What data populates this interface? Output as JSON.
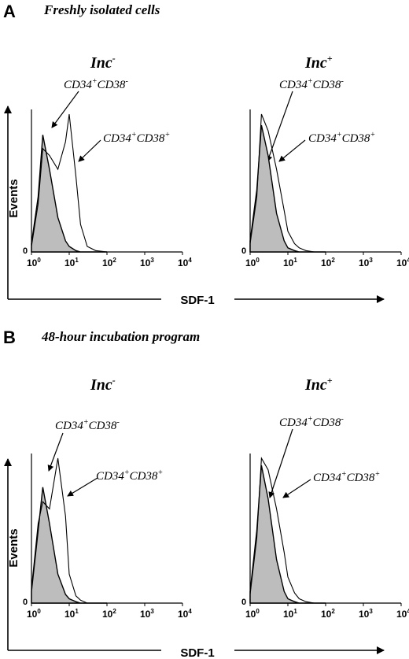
{
  "figure": {
    "panel_a": {
      "letter": "A",
      "title": "Freshly isolated cells"
    },
    "panel_b": {
      "letter": "B",
      "title": "48-hour incubation program"
    },
    "condition_base": "Inc",
    "condition_neg_sup": "-",
    "condition_pos_sup": "+",
    "pop_cd34": "CD34",
    "pop_cd38": "CD38",
    "sup_plus": "+",
    "sup_minus": "-",
    "events_label": "Events",
    "sdf_label": "SDF-1",
    "zero_tick": "0",
    "tick_base": "10",
    "tick_exponents": [
      "0",
      "1",
      "2",
      "3",
      "4"
    ]
  },
  "chart_data": [
    {
      "type": "area",
      "panel": "A",
      "condition": "Inc-",
      "xscale": "log",
      "xlim": [
        1,
        10000
      ],
      "x": [
        1,
        1.5,
        2,
        3,
        5,
        8,
        10,
        15,
        20,
        30,
        50,
        100
      ],
      "series": [
        {
          "name": "CD34+CD38-",
          "values": [
            6,
            40,
            85,
            60,
            25,
            8,
            4,
            1,
            0,
            0,
            0,
            0
          ]
        },
        {
          "name": "CD34+CD38+",
          "values": [
            4,
            35,
            75,
            70,
            60,
            80,
            100,
            55,
            20,
            4,
            1,
            0
          ]
        }
      ]
    },
    {
      "type": "area",
      "panel": "A",
      "condition": "Inc+",
      "xscale": "log",
      "xlim": [
        1,
        10000
      ],
      "x": [
        1,
        1.5,
        2,
        3,
        5,
        8,
        10,
        15,
        20,
        30,
        50,
        100
      ],
      "series": [
        {
          "name": "CD34+CD38-",
          "values": [
            8,
            45,
            92,
            70,
            28,
            8,
            3,
            1,
            0,
            0,
            0,
            0
          ]
        },
        {
          "name": "CD34+CD38+",
          "values": [
            6,
            40,
            100,
            88,
            60,
            30,
            15,
            6,
            3,
            1,
            0,
            0
          ]
        }
      ]
    },
    {
      "type": "area",
      "panel": "B",
      "condition": "Inc-",
      "xscale": "log",
      "xlim": [
        1,
        10000
      ],
      "x": [
        1,
        1.5,
        2,
        3,
        5,
        8,
        10,
        15,
        20,
        30,
        50,
        100
      ],
      "series": [
        {
          "name": "CD34+CD38-",
          "values": [
            8,
            50,
            80,
            55,
            20,
            6,
            3,
            1,
            0,
            0,
            0,
            0
          ]
        },
        {
          "name": "CD34+CD38+",
          "values": [
            10,
            55,
            70,
            65,
            100,
            60,
            20,
            5,
            2,
            0,
            0,
            0
          ]
        }
      ]
    },
    {
      "type": "area",
      "panel": "B",
      "condition": "Inc+",
      "xscale": "log",
      "xlim": [
        1,
        10000
      ],
      "x": [
        1,
        1.5,
        2,
        3,
        5,
        8,
        10,
        15,
        20,
        30,
        50,
        100
      ],
      "series": [
        {
          "name": "CD34+CD38-",
          "values": [
            8,
            50,
            95,
            72,
            30,
            8,
            3,
            1,
            0,
            0,
            0,
            0
          ]
        },
        {
          "name": "CD34+CD38+",
          "values": [
            6,
            45,
            100,
            92,
            65,
            35,
            18,
            7,
            3,
            1,
            0,
            0
          ]
        }
      ]
    }
  ]
}
